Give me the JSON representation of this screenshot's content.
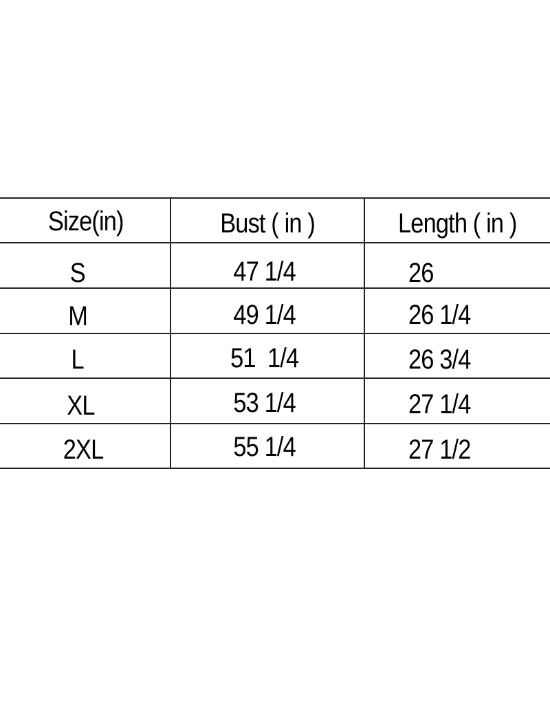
{
  "table": {
    "headers": [
      "Size(in)",
      "Bust ( in )",
      "Length ( in )"
    ],
    "rows": [
      {
        "size": "S",
        "bust": "47 1/4",
        "length": "26"
      },
      {
        "size": "M",
        "bust": "49 1/4",
        "length": "26 1/4"
      },
      {
        "size": "L",
        "bust": "51  1/4",
        "length": "26 3/4"
      },
      {
        "size": "XL",
        "bust": "53 1/4",
        "length": "27 1/4"
      },
      {
        "size": "2XL",
        "bust": "55 1/4",
        "length": "27 1/2"
      }
    ]
  }
}
